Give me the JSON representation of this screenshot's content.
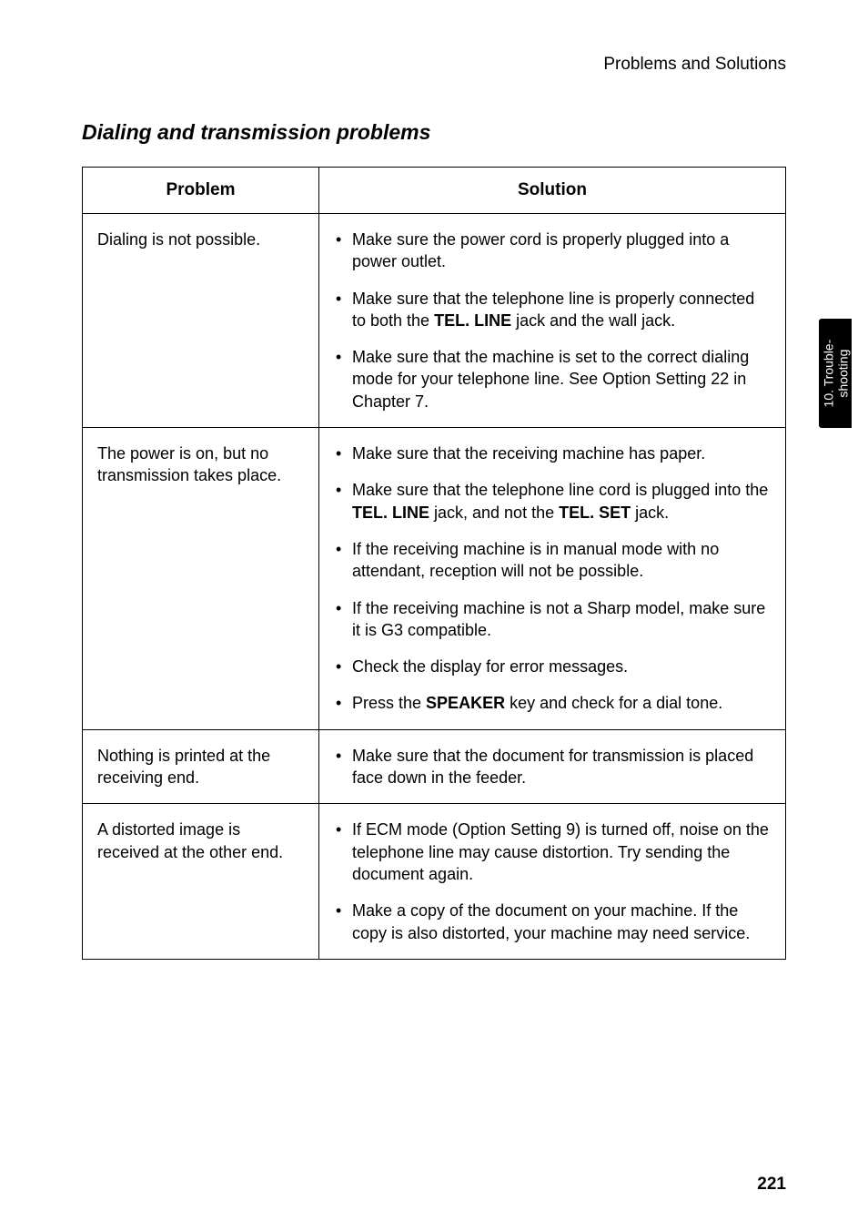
{
  "header": {
    "topic": "Problems and Solutions"
  },
  "section": {
    "title": "Dialing and transmission problems"
  },
  "table": {
    "col_problem": "Problem",
    "col_solution": "Solution",
    "rows": [
      {
        "problem": "Dialing is not possible.",
        "solutions": [
          "Make sure the power cord is properly plugged into a power outlet.",
          "Make sure that the telephone line is properly connected to both the <b>TEL. LINE</b> jack and the wall jack.",
          "Make sure that the machine is set to the correct dialing mode for your telephone line. See Option Setting 22 in Chapter 7."
        ]
      },
      {
        "problem": "The power is on, but no transmission takes place.",
        "solutions": [
          "Make sure that the receiving machine has paper.",
          "Make sure that the telephone line cord is plugged into the <b>TEL. LINE</b> jack, and not the <b>TEL. SET</b> jack.",
          "If the receiving machine is in manual mode with no attendant, reception will not be possible.",
          "If the receiving machine is not a Sharp model, make sure it is G3 compatible.",
          "Check the display for error messages.",
          "Press the <b>SPEAKER</b> key and check for a dial tone."
        ]
      },
      {
        "problem": "Nothing is printed at the receiving end.",
        "solutions": [
          "Make sure that the document for transmission is placed face down in the feeder."
        ]
      },
      {
        "problem": "A distorted image is received at the other end.",
        "solutions": [
          "If ECM mode (Option Setting 9) is turned off, noise on the telephone line may cause distortion. Try sending the document again.",
          "Make a copy of the document on your machine. If the copy is also distorted, your machine may need service."
        ]
      }
    ]
  },
  "sidetab": {
    "line1": "10. Trouble-",
    "line2": "shooting"
  },
  "page": {
    "number": "221"
  }
}
